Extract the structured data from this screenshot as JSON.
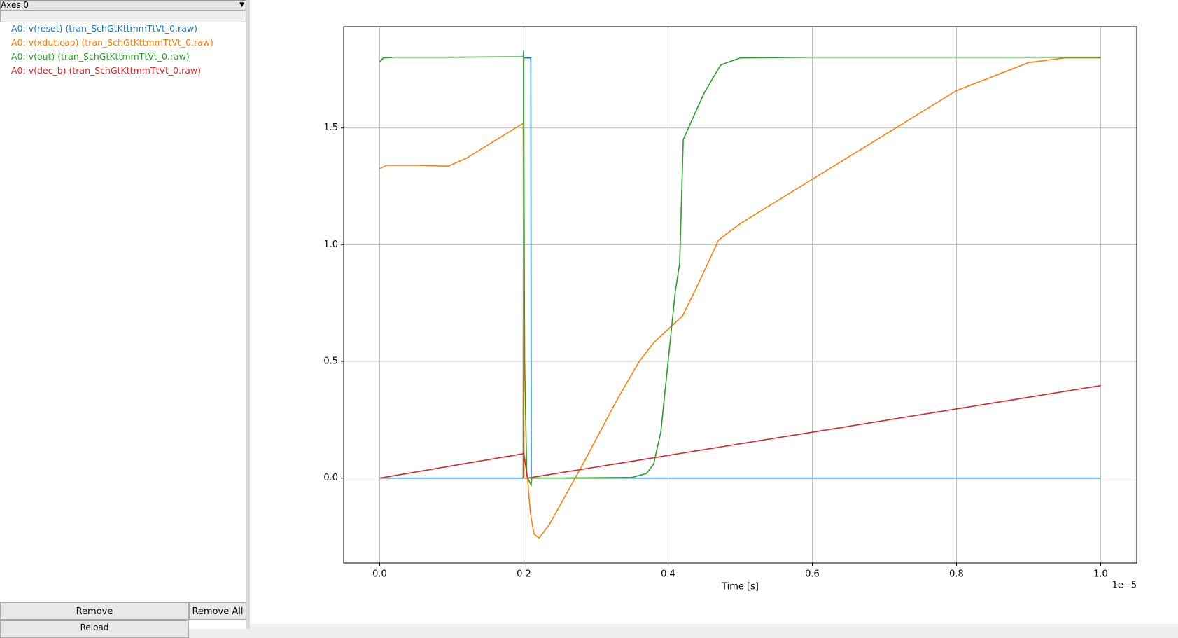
{
  "sidebar": {
    "axes_select": "Axes 0",
    "items": [
      {
        "label": "A0: v(reset) (tran_SchGtKttmmTtVt_0.raw)",
        "color": "#1f77b4"
      },
      {
        "label": "A0: v(xdut.cap) (tran_SchGtKttmmTtVt_0.raw)",
        "color": "#ff7f0e"
      },
      {
        "label": "A0: v(out) (tran_SchGtKttmmTtVt_0.raw)",
        "color": "#2ca02c"
      },
      {
        "label": "A0: v(dec_b) (tran_SchGtKttmmTtVt_0.raw)",
        "color": "#d62728"
      }
    ],
    "buttons": [
      "Remove",
      "Remove All",
      "Reload"
    ]
  },
  "chart_data": {
    "type": "line",
    "x_label": "Time [s]",
    "x_offset_label": "1e−5",
    "xlim": [
      -0.05,
      1.05
    ],
    "ylim": [
      -0.364,
      1.934
    ],
    "grid": true,
    "xticks": [
      {
        "value": 0,
        "label": "0.0"
      },
      0.2,
      0.4,
      0.6,
      0.8,
      {
        "value": 1,
        "label": "1.0"
      }
    ],
    "yticks": [
      {
        "value": 0,
        "label": "0.0"
      },
      0.5,
      {
        "value": 1,
        "label": "1.0"
      },
      1.5
    ],
    "series": [
      {
        "name": "v(reset)",
        "color": "#1f77b4",
        "x": [
          0,
          0.199,
          0.1995,
          0.2096,
          0.2101,
          1.0
        ],
        "values": [
          0,
          0,
          1.8,
          1.8,
          0,
          0
        ]
      },
      {
        "name": "v(xdut.cap)",
        "color": "#ff7f0e",
        "x": [
          0,
          0.01,
          0.05,
          0.095,
          0.12,
          0.199,
          0.2,
          0.205,
          0.209,
          0.214,
          0.221,
          0.235,
          0.28,
          0.33,
          0.36,
          0.38,
          0.42,
          0.44,
          0.47,
          0.5,
          0.6,
          0.7,
          0.8,
          0.9,
          0.95,
          1.0
        ],
        "values": [
          1.326,
          1.34,
          1.34,
          1.336,
          1.37,
          1.52,
          0.0,
          0.0,
          -0.15,
          -0.24,
          -0.257,
          -0.2,
          0.05,
          0.34,
          0.5,
          0.58,
          0.695,
          0.82,
          1.02,
          1.09,
          1.28,
          1.47,
          1.66,
          1.78,
          1.8,
          1.8
        ]
      },
      {
        "name": "v(out)",
        "color": "#2ca02c",
        "x": [
          0,
          0.005,
          0.02,
          0.1,
          0.199,
          0.1995,
          0.201,
          0.204,
          0.21,
          0.211,
          0.25,
          0.35,
          0.37,
          0.38,
          0.39,
          0.4,
          0.41,
          0.416,
          0.421,
          0.45,
          0.473,
          0.5,
          0.6,
          1.0
        ],
        "values": [
          1.783,
          1.8,
          1.803,
          1.803,
          1.805,
          1.83,
          0.5,
          0.01,
          -0.03,
          0.0,
          0.0,
          0.003,
          0.02,
          0.06,
          0.2,
          0.5,
          0.8,
          0.92,
          1.45,
          1.65,
          1.77,
          1.8,
          1.803,
          1.803
        ]
      },
      {
        "name": "v(dec_b)",
        "color": "#d62728",
        "x": [
          0,
          0.2,
          0.204,
          0.205,
          1.0
        ],
        "values": [
          0,
          0.105,
          0.02,
          0.0,
          0.396
        ]
      }
    ]
  }
}
